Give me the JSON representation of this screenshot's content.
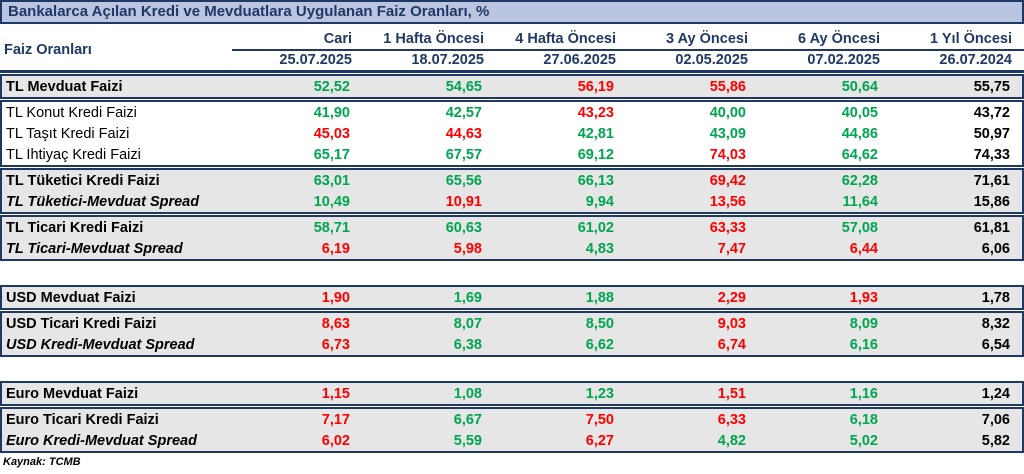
{
  "colors": {
    "g": "#00a550",
    "r": "#ff0000",
    "k": "#000000",
    "navy": "#1f3864",
    "title_bg": "#b9c5e1",
    "row_gray": "#e7e6e6"
  },
  "footer": {
    "source": "Kaynak: TCMB"
  },
  "chart_data": {
    "type": "table",
    "title": "Bankalarca Açılan Kredi ve Mevduatlara Uygulanan Faiz Oranları, %",
    "row_header_label": "Faiz Oranları",
    "columns": [
      "Cari",
      "1 Hafta Öncesi",
      "4 Hafta Öncesi",
      "3 Ay Öncesi",
      "6 Ay Öncesi",
      "1 Yıl Öncesi"
    ],
    "dates": [
      "25.07.2025",
      "18.07.2025",
      "27.06.2025",
      "02.05.2025",
      "07.02.2025",
      "26.07.2024"
    ],
    "color_legend": {
      "g": "green",
      "r": "red",
      "k": "black"
    },
    "sections": [
      {
        "bg": "gray",
        "rows": [
          {
            "label": "TL Mevduat Faizi",
            "style": "bold",
            "values": [
              [
                "52,52",
                "g"
              ],
              [
                "54,65",
                "g"
              ],
              [
                "56,19",
                "r"
              ],
              [
                "55,86",
                "r"
              ],
              [
                "50,64",
                "g"
              ],
              [
                "55,75",
                "k"
              ]
            ]
          }
        ]
      },
      {
        "bg": "white",
        "rows": [
          {
            "label": "TL Konut Kredi Faizi",
            "style": "regular",
            "values": [
              [
                "41,90",
                "g"
              ],
              [
                "42,57",
                "g"
              ],
              [
                "43,23",
                "r"
              ],
              [
                "40,00",
                "g"
              ],
              [
                "40,05",
                "g"
              ],
              [
                "43,72",
                "k"
              ]
            ]
          },
          {
            "label": "TL Taşıt Kredi Faizi",
            "style": "regular",
            "values": [
              [
                "45,03",
                "r"
              ],
              [
                "44,63",
                "r"
              ],
              [
                "42,81",
                "g"
              ],
              [
                "43,09",
                "g"
              ],
              [
                "44,86",
                "g"
              ],
              [
                "50,97",
                "k"
              ]
            ]
          },
          {
            "label": "TL İhtiyaç Kredi Faizi",
            "style": "regular",
            "values": [
              [
                "65,17",
                "g"
              ],
              [
                "67,57",
                "g"
              ],
              [
                "69,12",
                "g"
              ],
              [
                "74,03",
                "r"
              ],
              [
                "64,62",
                "g"
              ],
              [
                "74,33",
                "k"
              ]
            ]
          }
        ]
      },
      {
        "bg": "gray",
        "rows": [
          {
            "label": "TL Tüketici Kredi Faizi",
            "style": "bold",
            "values": [
              [
                "63,01",
                "g"
              ],
              [
                "65,56",
                "g"
              ],
              [
                "66,13",
                "g"
              ],
              [
                "69,42",
                "r"
              ],
              [
                "62,28",
                "g"
              ],
              [
                "71,61",
                "k"
              ]
            ]
          },
          {
            "label": "TL Tüketici-Mevduat Spread",
            "style": "bold-italic",
            "values": [
              [
                "10,49",
                "g"
              ],
              [
                "10,91",
                "r"
              ],
              [
                "9,94",
                "g"
              ],
              [
                "13,56",
                "r"
              ],
              [
                "11,64",
                "g"
              ],
              [
                "15,86",
                "k"
              ]
            ]
          }
        ]
      },
      {
        "bg": "gray",
        "rows": [
          {
            "label": "TL Ticari Kredi Faizi",
            "style": "bold",
            "values": [
              [
                "58,71",
                "g"
              ],
              [
                "60,63",
                "g"
              ],
              [
                "61,02",
                "g"
              ],
              [
                "63,33",
                "r"
              ],
              [
                "57,08",
                "g"
              ],
              [
                "61,81",
                "k"
              ]
            ]
          },
          {
            "label": "TL Ticari-Mevduat Spread",
            "style": "bold-italic",
            "values": [
              [
                "6,19",
                "r"
              ],
              [
                "5,98",
                "r"
              ],
              [
                "4,83",
                "g"
              ],
              [
                "7,47",
                "r"
              ],
              [
                "6,44",
                "r"
              ],
              [
                "6,06",
                "k"
              ]
            ]
          }
        ]
      },
      {
        "gap": true
      },
      {
        "bg": "gray",
        "rows": [
          {
            "label": "USD Mevduat Faizi",
            "style": "bold",
            "values": [
              [
                "1,90",
                "r"
              ],
              [
                "1,69",
                "g"
              ],
              [
                "1,88",
                "g"
              ],
              [
                "2,29",
                "r"
              ],
              [
                "1,93",
                "r"
              ],
              [
                "1,78",
                "k"
              ]
            ]
          }
        ]
      },
      {
        "bg": "gray",
        "rows": [
          {
            "label": "USD Ticari Kredi Faizi",
            "style": "bold",
            "values": [
              [
                "8,63",
                "r"
              ],
              [
                "8,07",
                "g"
              ],
              [
                "8,50",
                "g"
              ],
              [
                "9,03",
                "r"
              ],
              [
                "8,09",
                "g"
              ],
              [
                "8,32",
                "k"
              ]
            ]
          },
          {
            "label": "USD Kredi-Mevduat Spread",
            "style": "bold-italic",
            "values": [
              [
                "6,73",
                "r"
              ],
              [
                "6,38",
                "g"
              ],
              [
                "6,62",
                "g"
              ],
              [
                "6,74",
                "r"
              ],
              [
                "6,16",
                "g"
              ],
              [
                "6,54",
                "k"
              ]
            ]
          }
        ]
      },
      {
        "gap": true
      },
      {
        "bg": "gray",
        "rows": [
          {
            "label": "Euro Mevduat Faizi",
            "style": "bold",
            "values": [
              [
                "1,15",
                "r"
              ],
              [
                "1,08",
                "g"
              ],
              [
                "1,23",
                "g"
              ],
              [
                "1,51",
                "r"
              ],
              [
                "1,16",
                "g"
              ],
              [
                "1,24",
                "k"
              ]
            ]
          }
        ]
      },
      {
        "bg": "gray",
        "rows": [
          {
            "label": "Euro Ticari Kredi Faizi",
            "style": "bold",
            "values": [
              [
                "7,17",
                "r"
              ],
              [
                "6,67",
                "g"
              ],
              [
                "7,50",
                "r"
              ],
              [
                "6,33",
                "r"
              ],
              [
                "6,18",
                "g"
              ],
              [
                "7,06",
                "k"
              ]
            ]
          },
          {
            "label": "Euro Kredi-Mevduat Spread",
            "style": "bold-italic",
            "values": [
              [
                "6,02",
                "r"
              ],
              [
                "5,59",
                "g"
              ],
              [
                "6,27",
                "r"
              ],
              [
                "4,82",
                "g"
              ],
              [
                "5,02",
                "g"
              ],
              [
                "5,82",
                "k"
              ]
            ]
          }
        ]
      }
    ]
  }
}
